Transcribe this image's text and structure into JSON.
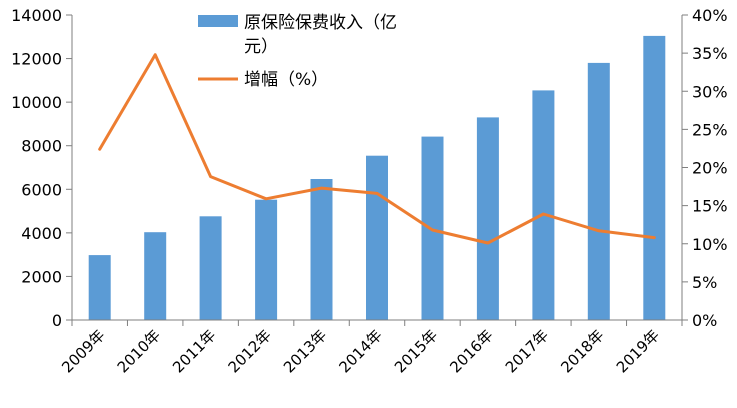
{
  "chart_data": {
    "type": "bar+line",
    "categories": [
      "2009年",
      "2010年",
      "2011年",
      "2012年",
      "2013年",
      "2014年",
      "2015年",
      "2016年",
      "2017年",
      "2018年",
      "2019年"
    ],
    "series": [
      {
        "name": "原保险保费收入（亿元）",
        "type": "bar",
        "axis": "left",
        "values": [
          2980,
          4030,
          4760,
          5520,
          6470,
          7540,
          8420,
          9300,
          10540,
          11800,
          13040
        ]
      },
      {
        "name": "增幅（%）",
        "type": "line",
        "axis": "right",
        "values": [
          22.4,
          34.8,
          18.8,
          15.9,
          17.3,
          16.6,
          11.8,
          10.1,
          13.9,
          11.7,
          10.8
        ]
      }
    ],
    "y_left": {
      "min": 0,
      "max": 14000,
      "step": 2000,
      "ticks": [
        "0",
        "2000",
        "4000",
        "6000",
        "8000",
        "10000",
        "12000",
        "14000"
      ]
    },
    "y_right": {
      "min": 0,
      "max": 40,
      "step": 5,
      "ticks": [
        "0%",
        "5%",
        "10%",
        "15%",
        "20%",
        "25%",
        "30%",
        "35%",
        "40%"
      ]
    },
    "legend": {
      "placement": "top-center",
      "bar_label_line1": "原保险保费收入（亿",
      "bar_label_line2": "元）",
      "line_label": "增幅（%）"
    },
    "colors": {
      "bar": "#5B9BD5",
      "line": "#ED7D31",
      "axis": "#7F7F7F"
    },
    "grid": false
  }
}
